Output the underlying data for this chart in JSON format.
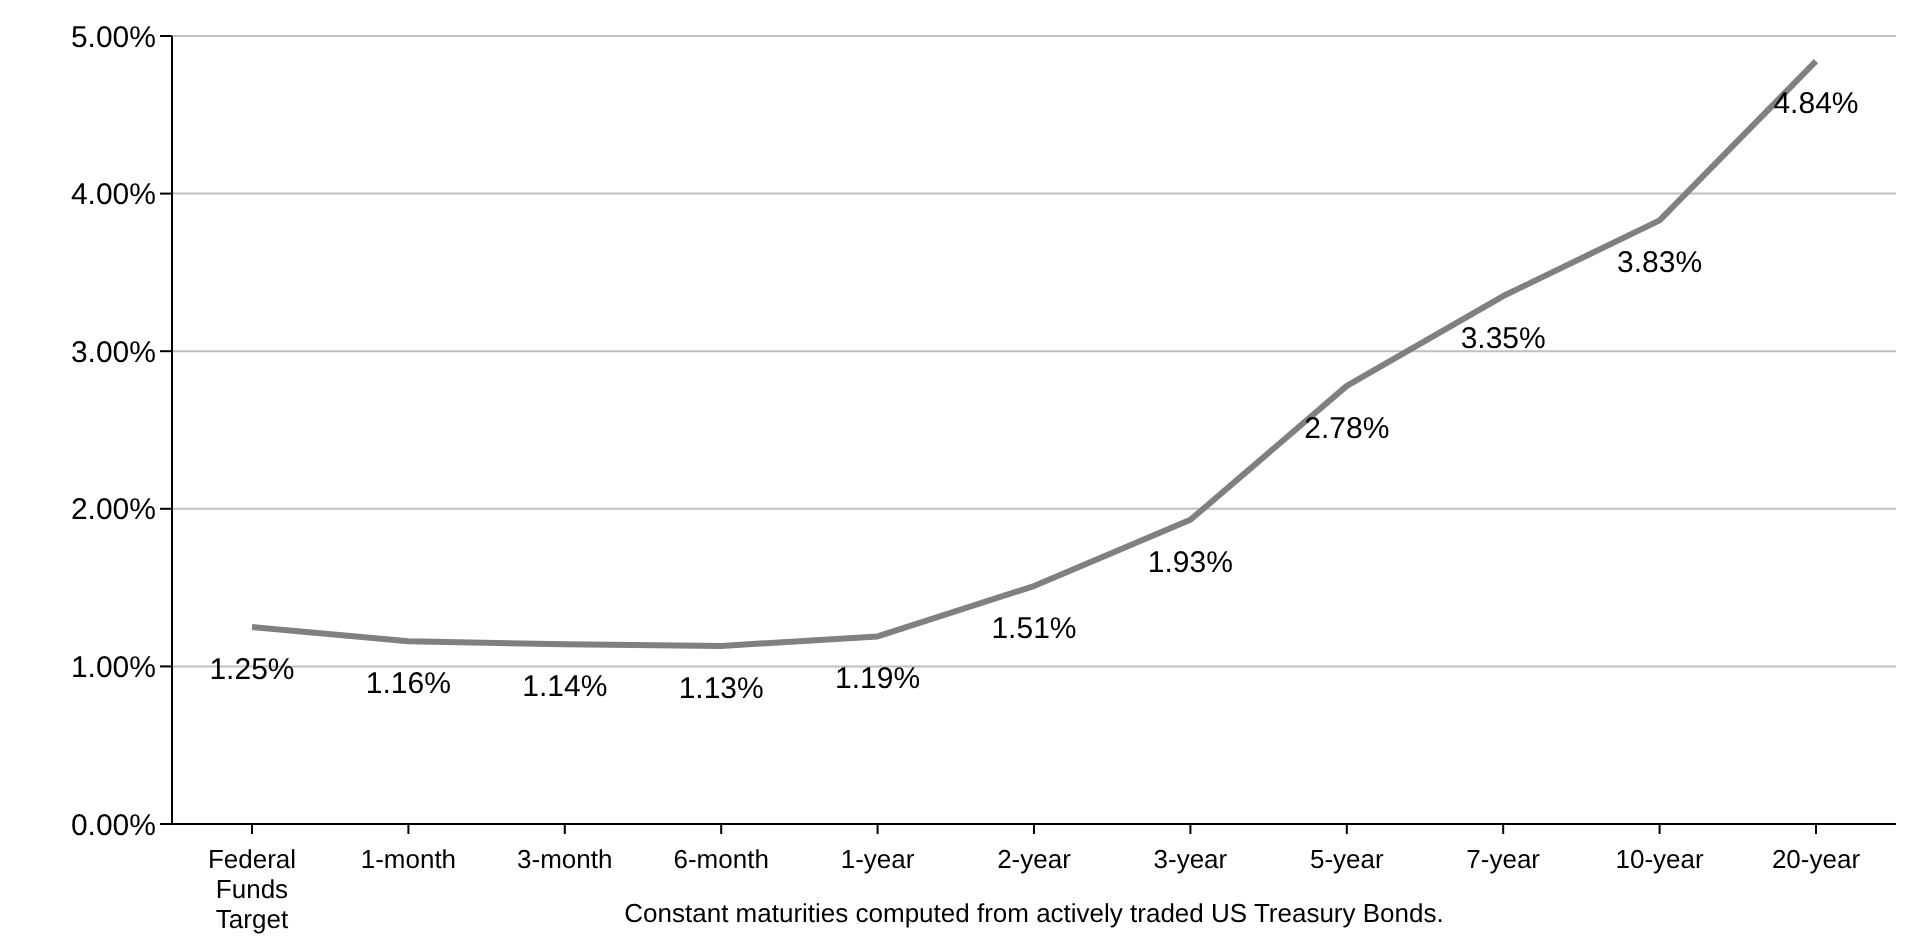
{
  "chart_data": {
    "type": "line",
    "xlabel": "Constant maturities computed from actively traded US Treasury Bonds.",
    "categories": [
      "Federal Funds Target",
      "1-month",
      "3-month",
      "6-month",
      "1-year",
      "2-year",
      "3-year",
      "5-year",
      "7-year",
      "10-year",
      "20-year"
    ],
    "series": [
      {
        "color": "#808080",
        "values": [
          1.25,
          1.16,
          1.14,
          1.13,
          1.19,
          1.51,
          1.93,
          2.78,
          3.35,
          3.83,
          4.84
        ],
        "value_labels": [
          "1.25%",
          "1.16%",
          "1.14%",
          "1.13%",
          "1.19%",
          "1.51%",
          "1.93%",
          "2.78%",
          "3.35%",
          "3.83%",
          "4.84%"
        ]
      }
    ],
    "ylim": [
      0,
      5
    ],
    "yticks": [
      {
        "value": 0,
        "label": "0.00%"
      },
      {
        "value": 1,
        "label": "1.00%"
      },
      {
        "value": 2,
        "label": "2.00%"
      },
      {
        "value": 3,
        "label": "3.00%"
      },
      {
        "value": 4,
        "label": "4.00%"
      },
      {
        "value": 5,
        "label": "5.00%"
      }
    ],
    "grid": "y",
    "legend": false,
    "marker": "none",
    "line_style": "solid"
  }
}
